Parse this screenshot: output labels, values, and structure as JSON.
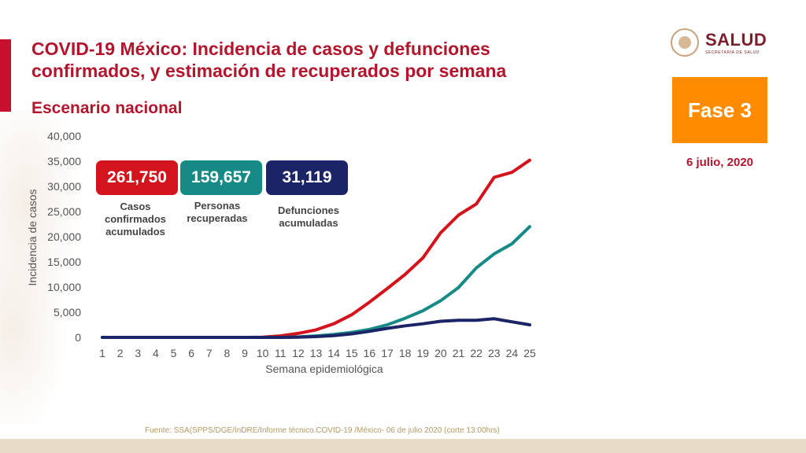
{
  "title": "COVID-19 México: Incidencia de casos y defunciones confirmados, y estimación de recuperados por semana",
  "subtitle": "Escenario nacional",
  "logo": {
    "word": "SALUD",
    "sub": "SECRETARÍA DE SALUD"
  },
  "phase_label": "Fase 3",
  "date": "6 julio, 2020",
  "stats": [
    {
      "value": "261,750",
      "label": "Casos confirmados acumulados",
      "color": "#d4141c"
    },
    {
      "value": "159,657",
      "label": "Personas recuperadas",
      "color": "#168a85"
    },
    {
      "value": "31,119",
      "label": "Defunciones acumuladas",
      "color": "#1a2466"
    }
  ],
  "source": "Fuente: SSA(SPPS/DGE/InDRE/Informe técnico.COVID-19 /México- 06 de julio 2020 (corte 13:00hrs)",
  "chart_data": {
    "type": "line",
    "x": [
      1,
      2,
      3,
      4,
      5,
      6,
      7,
      8,
      9,
      10,
      11,
      12,
      13,
      14,
      15,
      16,
      17,
      18,
      19,
      20,
      21,
      22,
      23,
      24,
      25
    ],
    "xlabel": "Semana epidemiológica",
    "ylabel": "Incidencia de casos",
    "ylim": [
      0,
      40000
    ],
    "yticks": [
      0,
      5000,
      10000,
      15000,
      20000,
      25000,
      30000,
      35000,
      40000
    ],
    "ytick_labels": [
      "0",
      "5,000",
      "10,000",
      "15,000",
      "20,000",
      "25,000",
      "30,000",
      "35,000",
      "40,000"
    ],
    "series": [
      {
        "key": "confirmed",
        "color": "#d4141c",
        "values": [
          0,
          0,
          0,
          0,
          0,
          0,
          0,
          0,
          0,
          50,
          300,
          800,
          1500,
          2700,
          4500,
          7000,
          9700,
          12500,
          15800,
          20800,
          24300,
          26500,
          31800,
          32800,
          35200
        ]
      },
      {
        "key": "recovered",
        "color": "#168a85",
        "values": [
          0,
          0,
          0,
          0,
          0,
          0,
          0,
          0,
          0,
          0,
          0,
          100,
          300,
          600,
          1000,
          1600,
          2500,
          3800,
          5300,
          7300,
          9900,
          13800,
          16600,
          18600,
          22000
        ]
      },
      {
        "key": "deaths",
        "color": "#1a2466",
        "values": [
          0,
          0,
          0,
          0,
          0,
          0,
          0,
          0,
          0,
          0,
          0,
          50,
          150,
          350,
          700,
          1200,
          1800,
          2300,
          2700,
          3200,
          3400,
          3400,
          3700,
          3100,
          2500
        ]
      }
    ]
  }
}
